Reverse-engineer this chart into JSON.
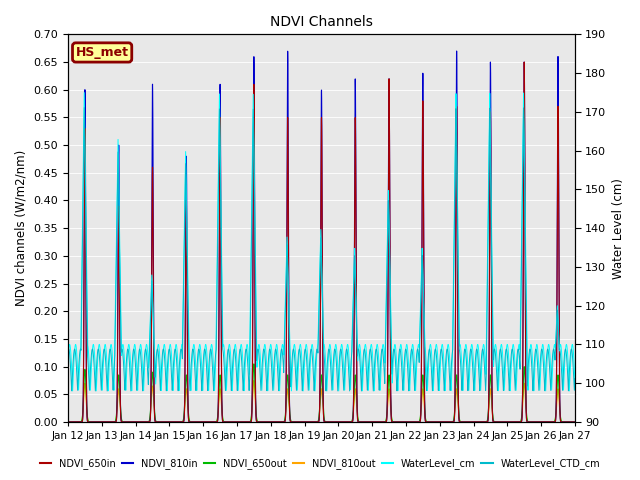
{
  "title": "NDVI Channels",
  "ylabel_left": "NDVI channels (W/m2/nm)",
  "ylabel_right": "Water Level (cm)",
  "ylim_left": [
    0.0,
    0.7
  ],
  "ylim_right": [
    90,
    190
  ],
  "yticks_left": [
    0.0,
    0.05,
    0.1,
    0.15,
    0.2,
    0.25,
    0.3,
    0.35,
    0.4,
    0.45,
    0.5,
    0.55,
    0.6,
    0.65,
    0.7
  ],
  "yticks_right": [
    90,
    100,
    110,
    120,
    130,
    140,
    150,
    160,
    170,
    180,
    190
  ],
  "xtick_labels": [
    "Jan 12",
    "Jan 13",
    "Jan 14",
    "Jan 15",
    "Jan 16",
    "Jan 17",
    "Jan 18",
    "Jan 19",
    "Jan 20",
    "Jan 21",
    "Jan 22",
    "Jan 23",
    "Jan 24",
    "Jan 25",
    "Jan 26",
    "Jan 27"
  ],
  "legend_box_label": "HS_met",
  "legend_box_facecolor": "#FFFF99",
  "legend_box_edgecolor": "#8B0000",
  "colors": {
    "NDVI_650in": "#AA0000",
    "NDVI_810in": "#0000CC",
    "NDVI_650out": "#00BB00",
    "NDVI_810out": "#FFA500",
    "WaterLevel_cm": "#00FFFF",
    "WaterLevel_CTD_cm": "#00BBCC"
  },
  "background_color": "#E8E8E8",
  "fig_background": "#FFFFFF",
  "spike_peaks_810in": [
    0.6,
    0.5,
    0.61,
    0.48,
    0.61,
    0.66,
    0.67,
    0.6,
    0.62,
    0.62,
    0.63,
    0.67,
    0.65,
    0.65,
    0.66
  ],
  "spike_peaks_650in": [
    0.53,
    0.39,
    0.46,
    0.4,
    0.55,
    0.61,
    0.55,
    0.55,
    0.55,
    0.62,
    0.58,
    0.57,
    0.56,
    0.65,
    0.57
  ],
  "spike_peaks_650out": [
    0.095,
    0.085,
    0.09,
    0.085,
    0.085,
    0.105,
    0.085,
    0.085,
    0.085,
    0.085,
    0.085,
    0.085,
    0.085,
    0.1,
    0.085
  ],
  "spike_peaks_810out": [
    0.07,
    0.06,
    0.065,
    0.06,
    0.06,
    0.075,
    0.06,
    0.06,
    0.06,
    0.06,
    0.06,
    0.06,
    0.06,
    0.07,
    0.06
  ],
  "water_peaks_cm": [
    175,
    163,
    128,
    160,
    175,
    175,
    138,
    140,
    135,
    150,
    135,
    175,
    175,
    175,
    120
  ],
  "water_base": 98,
  "water_osc_amp": 12,
  "water_osc_period": 0.35,
  "n_days": 15,
  "pts_per_day": 500
}
